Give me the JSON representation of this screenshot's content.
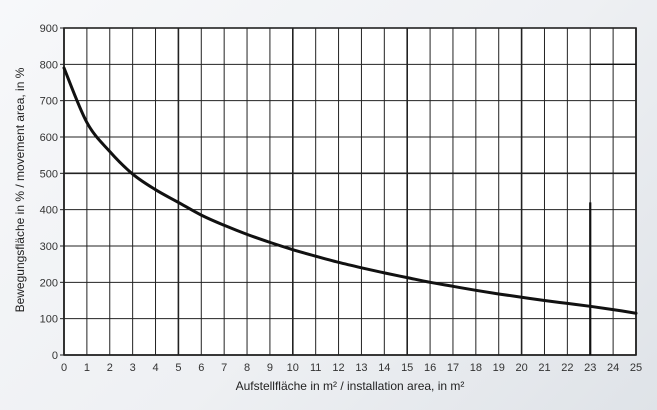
{
  "chart_data": {
    "type": "line",
    "xlabel": "Aufstellfläche in m² / installation area, in m²",
    "ylabel": "Bewegungsfläche in % / movement area, in %",
    "xlim": [
      0,
      25
    ],
    "ylim": [
      0,
      900
    ],
    "x_ticks": [
      0,
      1,
      2,
      3,
      4,
      5,
      6,
      7,
      8,
      9,
      10,
      11,
      12,
      13,
      14,
      15,
      16,
      17,
      18,
      19,
      20,
      21,
      22,
      23,
      24,
      25
    ],
    "y_ticks": [
      0,
      100,
      200,
      300,
      400,
      500,
      600,
      700,
      800,
      900
    ],
    "grid": true,
    "series": [
      {
        "x": [
          0,
          1,
          2,
          3,
          4,
          5,
          6,
          7,
          8,
          9,
          10,
          11,
          12,
          13,
          14,
          15,
          16,
          17,
          18,
          19,
          20,
          21,
          22,
          23,
          24,
          25
        ],
        "values": [
          790,
          640,
          560,
          498,
          455,
          420,
          385,
          357,
          332,
          310,
          290,
          272,
          255,
          240,
          226,
          213,
          200,
          189,
          178,
          168,
          159,
          150,
          142,
          134,
          125,
          115
        ]
      }
    ],
    "annotations": [
      {
        "type": "vertical-line",
        "x": 23,
        "y_from": 0,
        "y_to": 420
      },
      {
        "type": "horizontal-line",
        "y": 800,
        "x_from": 23,
        "x_to": 25
      }
    ]
  }
}
